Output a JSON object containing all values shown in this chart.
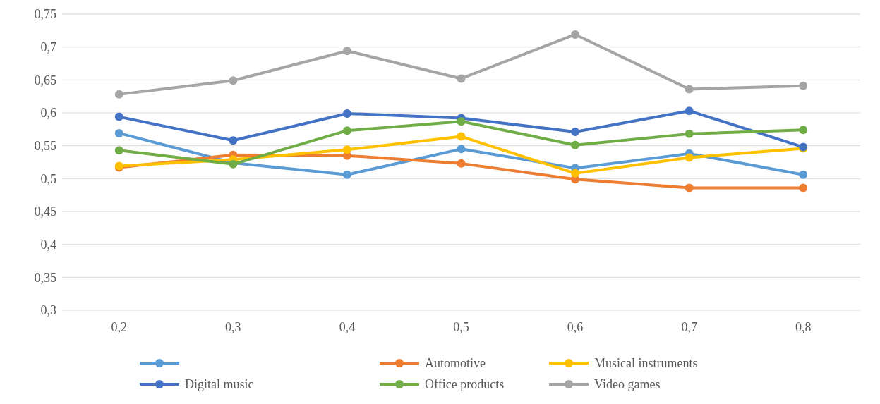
{
  "chart_data": {
    "type": "line",
    "categories": [
      "0,2",
      "0,3",
      "0,4",
      "0,5",
      "0,6",
      "0,7",
      "0,8"
    ],
    "ylim": [
      0.3,
      0.75
    ],
    "yticks": [
      {
        "value": 0.3,
        "label": "0,3"
      },
      {
        "value": 0.35,
        "label": "0,35"
      },
      {
        "value": 0.4,
        "label": "0,4"
      },
      {
        "value": 0.45,
        "label": "0,45"
      },
      {
        "value": 0.5,
        "label": "0,5"
      },
      {
        "value": 0.55,
        "label": "0,55"
      },
      {
        "value": 0.6,
        "label": "0,6"
      },
      {
        "value": 0.65,
        "label": "0,65"
      },
      {
        "value": 0.7,
        "label": "0,7"
      },
      {
        "value": 0.75,
        "label": "0,75"
      }
    ],
    "grid": "y",
    "legend": "bottom",
    "marker": "circle",
    "line_style": "solid",
    "series": [
      {
        "color": "#5b9bd5",
        "values": [
          0.569,
          0.524,
          0.506,
          0.545,
          0.516,
          0.538,
          0.506
        ]
      },
      {
        "name": "Automotive",
        "color": "#ed7d31",
        "values": [
          0.517,
          0.536,
          0.535,
          0.523,
          0.499,
          0.486,
          0.486
        ]
      },
      {
        "name": "Musical instruments",
        "color": "#ffc000",
        "values": [
          0.519,
          0.529,
          0.544,
          0.564,
          0.508,
          0.532,
          0.546
        ]
      },
      {
        "name": "Digital music",
        "color": "#4472c4",
        "values": [
          0.594,
          0.558,
          0.599,
          0.592,
          0.571,
          0.603,
          0.548
        ]
      },
      {
        "name": "Office products",
        "color": "#70ad47",
        "values": [
          0.543,
          0.522,
          0.573,
          0.587,
          0.551,
          0.568,
          0.574
        ]
      },
      {
        "name": "Video games",
        "color": "#a5a5a5",
        "values": [
          0.628,
          0.649,
          0.694,
          0.652,
          0.719,
          0.636,
          0.641
        ]
      }
    ]
  }
}
